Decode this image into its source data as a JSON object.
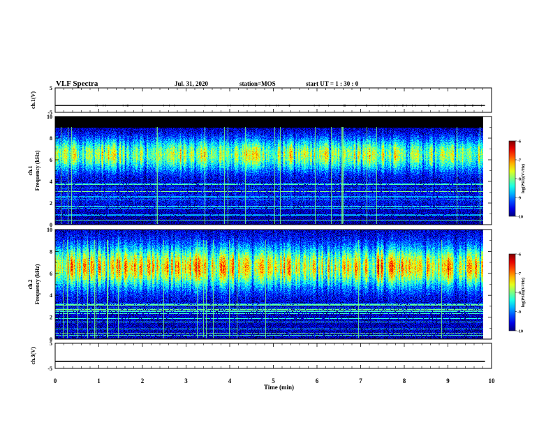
{
  "header": {
    "title": "VLF Spectra",
    "date": "Jul. 31, 2020",
    "station": "station=MOS",
    "start": "start  UT =   1 : 30 : 0"
  },
  "chart_data": [
    {
      "type": "line",
      "ylabel": "ch.1(V)",
      "ylim": [
        -5,
        5
      ],
      "yticks": [
        "5",
        "-5"
      ],
      "x": [
        0,
        9.85
      ],
      "values": [
        -2.2,
        -2.2
      ]
    },
    {
      "type": "heatmap",
      "ylabel_top": "ch.1",
      "ylabel": "Frequency (kHz)",
      "ylim": [
        0,
        10
      ],
      "yticks": [
        "0",
        "2",
        "4",
        "6",
        "8",
        "10"
      ],
      "xlim": [
        0,
        10
      ],
      "data_xmax": 9.8,
      "saturated_above_khz": 9.0,
      "colorbar": {
        "label": "log(PSD)(V²/Hz)",
        "range": [
          -10,
          -6
        ],
        "ticks": [
          "-6",
          "-7",
          "-8",
          "-9",
          "-10"
        ]
      }
    },
    {
      "type": "heatmap",
      "ylabel_top": "ch.2",
      "ylabel": "Frequency (kHz)",
      "ylim": [
        0,
        10
      ],
      "yticks": [
        "0",
        "2",
        "4",
        "6",
        "8",
        "10"
      ],
      "xlim": [
        0,
        10
      ],
      "data_xmax": 9.8,
      "colorbar": {
        "label": "log(PSD)(V²/Hz)",
        "range": [
          -10,
          -6
        ],
        "ticks": [
          "-6",
          "-7",
          "-8",
          "-9",
          "-10"
        ]
      }
    },
    {
      "type": "line",
      "ylabel": "ch.3(V)",
      "ylim": [
        -5,
        5
      ],
      "yticks": [
        "5",
        "-5"
      ],
      "x": [
        0,
        9.85
      ],
      "values": [
        -2.2,
        -2.2
      ],
      "xlabel": "Time (min)",
      "xticks": [
        "0",
        "1",
        "2",
        "3",
        "4",
        "5",
        "6",
        "7",
        "8",
        "9",
        "10"
      ]
    }
  ]
}
